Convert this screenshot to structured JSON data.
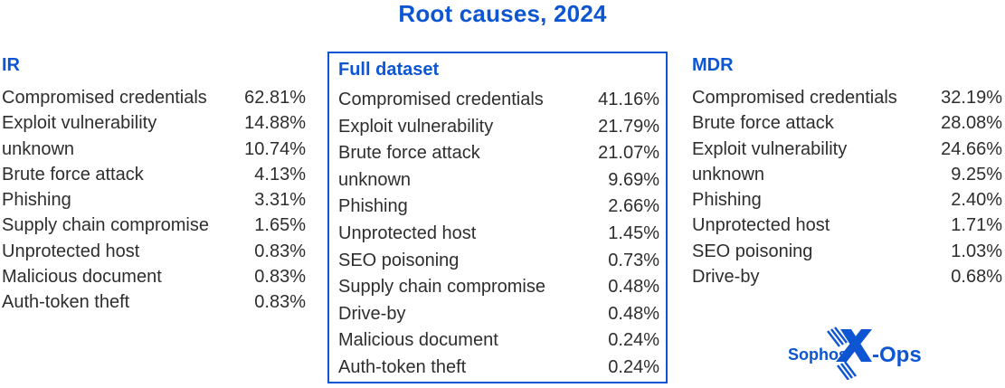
{
  "title": "Root causes, 2024",
  "colors": {
    "accent": "#0d55d2",
    "text": "#2e2e2e",
    "background": "#ffffff"
  },
  "columns": [
    {
      "header": "IR",
      "boxed": false,
      "rows": [
        {
          "label": "Compromised credentials",
          "pct": "62.81%"
        },
        {
          "label": "Exploit vulnerability",
          "pct": "14.88%"
        },
        {
          "label": "unknown",
          "pct": "10.74%"
        },
        {
          "label": "Brute force attack",
          "pct": "4.13%"
        },
        {
          "label": "Phishing",
          "pct": "3.31%"
        },
        {
          "label": "Supply chain compromise",
          "pct": "1.65%"
        },
        {
          "label": "Unprotected host",
          "pct": "0.83%"
        },
        {
          "label": "Malicious document",
          "pct": "0.83%"
        },
        {
          "label": "Auth-token theft",
          "pct": "0.83%"
        }
      ]
    },
    {
      "header": "Full dataset",
      "boxed": true,
      "rows": [
        {
          "label": "Compromised credentials",
          "pct": "41.16%"
        },
        {
          "label": "Exploit vulnerability",
          "pct": "21.79%"
        },
        {
          "label": "Brute force attack",
          "pct": "21.07%"
        },
        {
          "label": "unknown",
          "pct": "9.69%"
        },
        {
          "label": "Phishing",
          "pct": "2.66%"
        },
        {
          "label": "Unprotected host",
          "pct": "1.45%"
        },
        {
          "label": "SEO poisoning",
          "pct": "0.73%"
        },
        {
          "label": "Supply chain compromise",
          "pct": "0.48%"
        },
        {
          "label": "Drive-by",
          "pct": "0.48%"
        },
        {
          "label": "Malicious document",
          "pct": "0.24%"
        },
        {
          "label": "Auth-token theft",
          "pct": "0.24%"
        }
      ]
    },
    {
      "header": "MDR",
      "boxed": false,
      "rows": [
        {
          "label": "Compromised credentials",
          "pct": "32.19%"
        },
        {
          "label": "Brute force attack",
          "pct": "28.08%"
        },
        {
          "label": "Exploit vulnerability",
          "pct": "24.66%"
        },
        {
          "label": "unknown",
          "pct": "9.25%"
        },
        {
          "label": "Phishing",
          "pct": "2.40%"
        },
        {
          "label": "Unprotected host",
          "pct": "1.71%"
        },
        {
          "label": "SEO poisoning",
          "pct": "1.03%"
        },
        {
          "label": "Drive-by",
          "pct": "0.68%"
        }
      ]
    }
  ],
  "logo": {
    "brand": "Sophos",
    "suffix": "-Ops"
  },
  "chart_data": [
    {
      "type": "table",
      "title": "IR",
      "categories": [
        "Compromised credentials",
        "Exploit vulnerability",
        "unknown",
        "Brute force attack",
        "Phishing",
        "Supply chain compromise",
        "Unprotected host",
        "Malicious document",
        "Auth-token theft"
      ],
      "values": [
        62.81,
        14.88,
        10.74,
        4.13,
        3.31,
        1.65,
        0.83,
        0.83,
        0.83
      ],
      "unit": "%"
    },
    {
      "type": "table",
      "title": "Full dataset",
      "categories": [
        "Compromised credentials",
        "Exploit vulnerability",
        "Brute force attack",
        "unknown",
        "Phishing",
        "Unprotected host",
        "SEO poisoning",
        "Supply chain compromise",
        "Drive-by",
        "Malicious document",
        "Auth-token theft"
      ],
      "values": [
        41.16,
        21.79,
        21.07,
        9.69,
        2.66,
        1.45,
        0.73,
        0.48,
        0.48,
        0.24,
        0.24
      ],
      "unit": "%"
    },
    {
      "type": "table",
      "title": "MDR",
      "categories": [
        "Compromised credentials",
        "Brute force attack",
        "Exploit vulnerability",
        "unknown",
        "Phishing",
        "Unprotected host",
        "SEO poisoning",
        "Drive-by"
      ],
      "values": [
        32.19,
        28.08,
        24.66,
        9.25,
        2.4,
        1.71,
        1.03,
        0.68
      ],
      "unit": "%"
    }
  ]
}
